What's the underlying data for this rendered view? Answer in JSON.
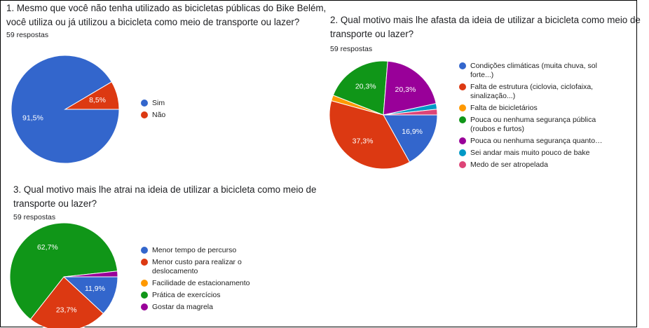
{
  "chart_data": [
    {
      "type": "pie",
      "title": "1. Mesmo que você não tenha utilizado as bicicletas públicas do Bike Belém, você utiliza ou já utilizou a bicicleta como meio de transporte ou lazer?",
      "subtitle": "59 respostas",
      "categories": [
        "Sim",
        "Não"
      ],
      "values": [
        91.5,
        8.5
      ],
      "value_labels": [
        "91,5%",
        "8,5%"
      ],
      "colors": [
        "#3366cc",
        "#dc3912"
      ]
    },
    {
      "type": "pie",
      "title": "2. Qual motivo mais lhe afasta da ideia de utilizar a bicicleta como meio de transporte ou lazer?",
      "subtitle": "59 respostas",
      "categories": [
        "Condições climáticas (muita chuva, sol forte...)",
        "Falta de estrutura (ciclovia, ciclofaixa, sinalização...)",
        "Falta de bicicletários",
        "Pouca ou nenhuma segurança pública (roubos e furtos)",
        "Pouca ou nenhuma segurança quanto…",
        "Sei andar mais muito pouco de bake",
        "Medo de ser atropelada"
      ],
      "values": [
        16.9,
        37.3,
        1.7,
        20.3,
        20.3,
        1.7,
        1.7
      ],
      "value_labels": [
        "16,9%",
        "37,3%",
        null,
        "20,3%",
        "20,3%",
        null,
        null
      ],
      "colors": [
        "#3366cc",
        "#dc3912",
        "#ff9900",
        "#109618",
        "#990099",
        "#0099c6",
        "#dd4477"
      ]
    },
    {
      "type": "pie",
      "title": "3. Qual motivo mais lhe atrai na ideia de utilizar a bicicleta como meio de transporte ou lazer?",
      "subtitle": "59 respostas",
      "categories": [
        "Menor tempo de percurso",
        "Menor custo para realizar o deslocamento",
        "Facilidade de estacionamento",
        "Prática de exercícios",
        "Gostar da magrela"
      ],
      "values": [
        11.9,
        23.7,
        0,
        62.7,
        1.7
      ],
      "value_labels": [
        "11,9%",
        "23,7%",
        null,
        "62,7%",
        null
      ],
      "colors": [
        "#3366cc",
        "#dc3912",
        "#ff9900",
        "#109618",
        "#990099"
      ]
    }
  ]
}
